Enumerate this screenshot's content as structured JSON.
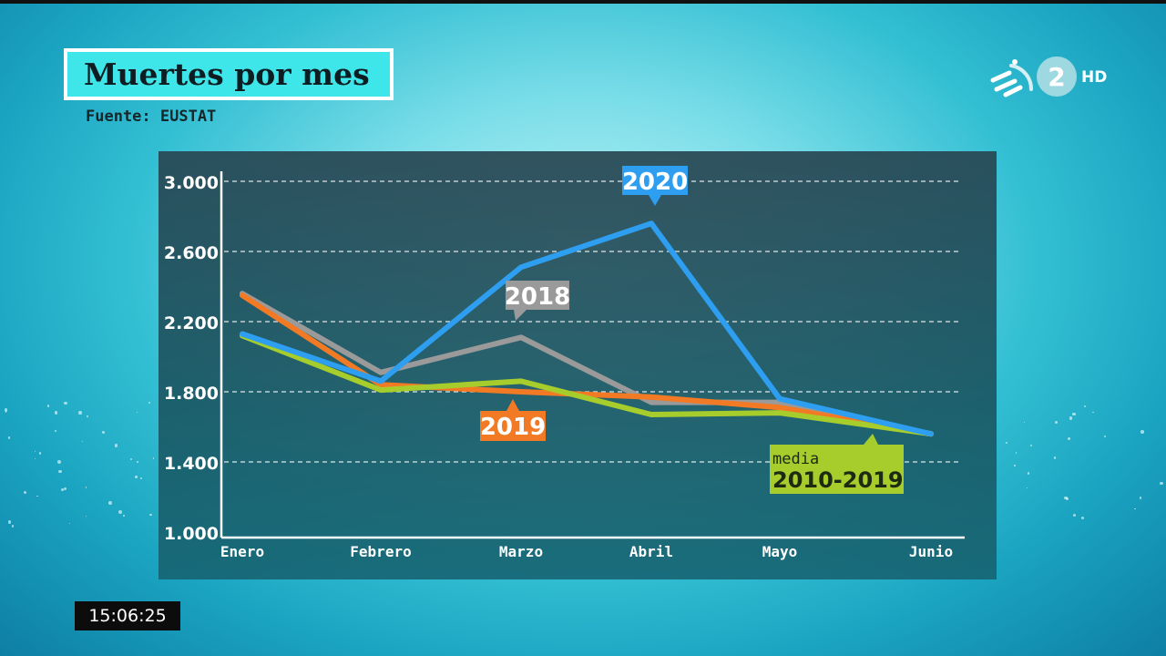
{
  "header": {
    "title": "Muertes por mes",
    "source": "Fuente: EUSTAT"
  },
  "channel": {
    "logo_number": "2",
    "logo_quality": "HD"
  },
  "clock": "15:06:25",
  "colors": {
    "series_2020": "#2e9ef0",
    "series_2018": "#9a9a9a",
    "series_2019": "#f37a24",
    "series_media": "#a7cd2c",
    "title_box": "#3ee6ea"
  },
  "chart_data": {
    "type": "line",
    "categories": [
      "Enero",
      "Febrero",
      "Marzo",
      "Abril",
      "Mayo",
      "Junio"
    ],
    "ylim": [
      1000,
      3000
    ],
    "yticks": [
      "1.000",
      "1.400",
      "1.800",
      "2.200",
      "2.600",
      "3.000"
    ],
    "grid": true,
    "series": [
      {
        "key": "s2018",
        "name": "2018",
        "values": [
          2360,
          1910,
          2110,
          1740,
          1740,
          1560
        ]
      },
      {
        "key": "s2019",
        "name": "2019",
        "values": [
          2350,
          1840,
          1800,
          1770,
          1710,
          1560
        ]
      },
      {
        "key": "smedia",
        "name": "media 2010-2019",
        "values": [
          2120,
          1810,
          1860,
          1670,
          1680,
          1560
        ]
      },
      {
        "key": "s2020",
        "name": "2020",
        "values": [
          2130,
          1860,
          2510,
          2760,
          1760,
          1560
        ]
      }
    ],
    "labels": {
      "s2020": "2020",
      "s2018": "2018",
      "s2019": "2019",
      "media_small": "media",
      "media_big": "2010-2019"
    }
  }
}
